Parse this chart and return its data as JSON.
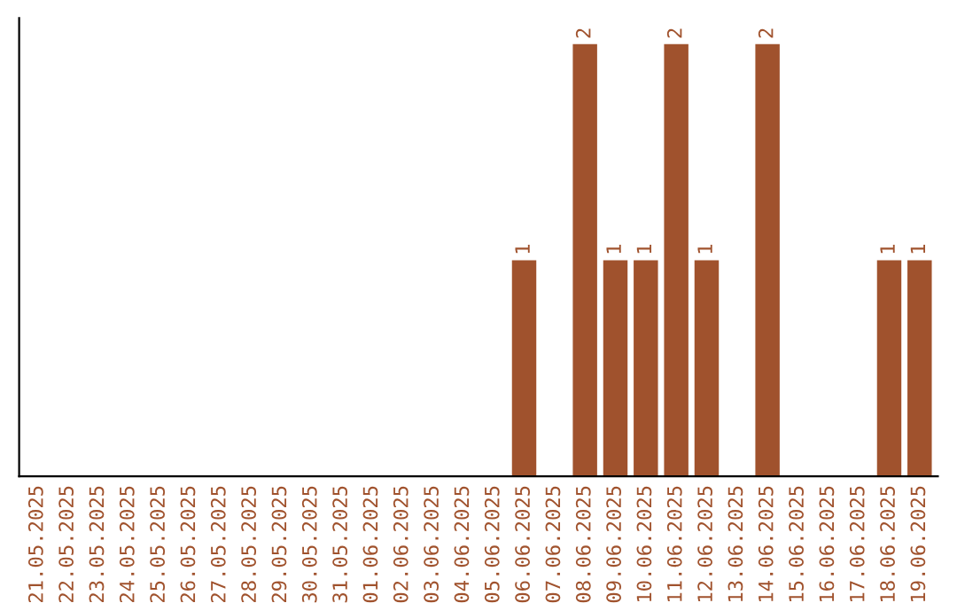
{
  "chart_data": {
    "type": "bar",
    "categories": [
      "21.05.2025",
      "22.05.2025",
      "23.05.2025",
      "24.05.2025",
      "25.05.2025",
      "26.05.2025",
      "27.05.2025",
      "28.05.2025",
      "29.05.2025",
      "30.05.2025",
      "31.05.2025",
      "01.06.2025",
      "02.06.2025",
      "03.06.2025",
      "04.06.2025",
      "05.06.2025",
      "06.06.2025",
      "07.06.2025",
      "08.06.2025",
      "09.06.2025",
      "10.06.2025",
      "11.06.2025",
      "12.06.2025",
      "13.06.2025",
      "14.06.2025",
      "15.06.2025",
      "16.06.2025",
      "17.06.2025",
      "18.06.2025",
      "19.06.2025"
    ],
    "values": [
      null,
      null,
      null,
      null,
      null,
      null,
      null,
      null,
      null,
      null,
      null,
      null,
      null,
      null,
      null,
      null,
      1,
      null,
      2,
      1,
      1,
      2,
      1,
      null,
      2,
      null,
      null,
      null,
      1,
      1
    ],
    "data_labels": true,
    "color": "#a0522d",
    "tick_labels": "x",
    "grid": false,
    "legend": false
  }
}
